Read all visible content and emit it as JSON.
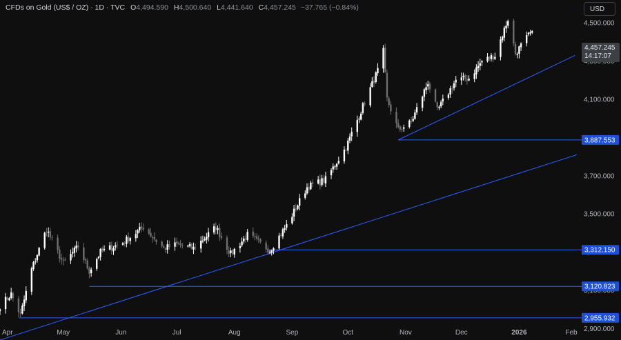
{
  "header": {
    "symbol": "CFDs on Gold (US$ / OZ)",
    "interval": "1D",
    "source": "TVC",
    "open_label": "O",
    "open": "4,494.590",
    "high_label": "H",
    "high": "4,500.640",
    "low_label": "L",
    "low": "4,441.640",
    "close_label": "C",
    "close": "4,457.245",
    "change": "−37.765 (−0.84%)"
  },
  "currency_button": "USD",
  "price_tag": {
    "price": "4,457.245",
    "countdown": "14:17:07"
  },
  "colors": {
    "background": "#0f0f0f",
    "up_candle": "#ffffff",
    "down_candle": "#6f6f6f",
    "trendline": "#2962ff",
    "level_label": "#1e4fd8"
  },
  "chart_data": {
    "type": "candlestick",
    "title": "CFDs on Gold (US$ / OZ) · 1D · TVC",
    "xlabel": "",
    "ylabel": "",
    "ylim": [
      2840,
      4620
    ],
    "x_start": "2025-03-28",
    "x_end": "2026-02-01",
    "y_ticks": [
      "2,900.000",
      "3,100.000",
      "3,300.000",
      "3,500.000",
      "3,700.000",
      "3,900.000",
      "4,100.000",
      "4,300.000",
      "4,500.000"
    ],
    "month_labels": [
      {
        "label": "Apr",
        "date": "2025-04-01"
      },
      {
        "label": "May",
        "date": "2025-05-01"
      },
      {
        "label": "Jun",
        "date": "2025-06-01"
      },
      {
        "label": "Jul",
        "date": "2025-07-01"
      },
      {
        "label": "Aug",
        "date": "2025-08-01"
      },
      {
        "label": "Sep",
        "date": "2025-09-01"
      },
      {
        "label": "Oct",
        "date": "2025-10-01"
      },
      {
        "label": "Nov",
        "date": "2025-11-01"
      },
      {
        "label": "Dec",
        "date": "2025-12-01"
      },
      {
        "label": "2026",
        "date": "2026-01-01"
      },
      {
        "label": "Feb",
        "date": "2026-02-01"
      }
    ],
    "key_levels": [
      {
        "value": 3887.553,
        "label": "3,887.553",
        "from": "2025-10-28"
      },
      {
        "value": 3312.15,
        "label": "3,312.150",
        "from": "2025-08-20"
      },
      {
        "value": 3120.823,
        "label": "3,120.823",
        "from": "2025-05-15"
      },
      {
        "value": 2955.932,
        "label": "2,955.932",
        "from": "2025-04-07"
      }
    ],
    "trendlines": [
      {
        "x1": "2025-03-28",
        "y1": 2840,
        "x2": "2026-02-01",
        "y2": 3810
      },
      {
        "x1": "2025-10-28",
        "y1": 3887.553,
        "x2": "2026-01-31",
        "y2": 4330
      }
    ],
    "anchor_points": [
      [
        "2025-03-28",
        3020
      ],
      [
        "2025-04-03",
        3080
      ],
      [
        "2025-04-08",
        2970
      ],
      [
        "2025-04-14",
        3210
      ],
      [
        "2025-04-22",
        3420
      ],
      [
        "2025-05-01",
        3240
      ],
      [
        "2025-05-09",
        3330
      ],
      [
        "2025-05-15",
        3200
      ],
      [
        "2025-05-21",
        3300
      ],
      [
        "2025-06-02",
        3350
      ],
      [
        "2025-06-13",
        3430
      ],
      [
        "2025-06-24",
        3320
      ],
      [
        "2025-07-01",
        3340
      ],
      [
        "2025-07-10",
        3320
      ],
      [
        "2025-07-22",
        3430
      ],
      [
        "2025-07-30",
        3290
      ],
      [
        "2025-08-08",
        3390
      ],
      [
        "2025-08-20",
        3310
      ],
      [
        "2025-08-29",
        3440
      ],
      [
        "2025-09-09",
        3640
      ],
      [
        "2025-09-19",
        3680
      ],
      [
        "2025-09-30",
        3850
      ],
      [
        "2025-10-08",
        4040
      ],
      [
        "2025-10-17",
        4250
      ],
      [
        "2025-10-20",
        4350
      ],
      [
        "2025-10-22",
        4100
      ],
      [
        "2025-10-28",
        3940
      ],
      [
        "2025-11-04",
        3980
      ],
      [
        "2025-11-13",
        4190
      ],
      [
        "2025-11-18",
        4040
      ],
      [
        "2025-11-28",
        4200
      ],
      [
        "2025-12-05",
        4210
      ],
      [
        "2025-12-12",
        4300
      ],
      [
        "2025-12-19",
        4330
      ],
      [
        "2025-12-26",
        4520
      ],
      [
        "2025-12-30",
        4340
      ],
      [
        "2026-01-05",
        4420
      ],
      [
        "2026-01-08",
        4457.245
      ]
    ]
  }
}
